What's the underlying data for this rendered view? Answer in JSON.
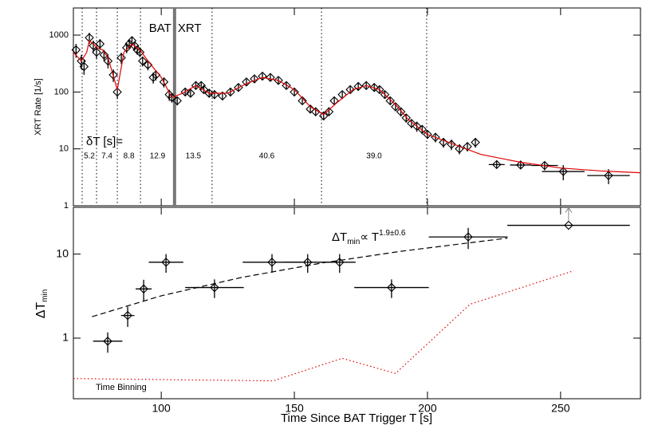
{
  "chart_data": [
    {
      "type": "scatter",
      "y_label": "XRT Rate [1/s]",
      "log_y": true,
      "xlim": [
        67,
        280
      ],
      "xticks": [
        100,
        150,
        200,
        250
      ],
      "ylim": [
        1,
        3000
      ],
      "yticks": [
        1,
        10,
        100,
        1000
      ],
      "series": [
        {
          "style": "points",
          "color": "#000000",
          "x": [
            68,
            70,
            71,
            73,
            74.5,
            75.7,
            77,
            78.5,
            80,
            82,
            83.5,
            85,
            87,
            88,
            89,
            90,
            91,
            92,
            93,
            95,
            97,
            98,
            101,
            103,
            104,
            106,
            109,
            111,
            113,
            115,
            116,
            118,
            120,
            123,
            126,
            129,
            132,
            135,
            138,
            141,
            144,
            147,
            150,
            153,
            156,
            158,
            161,
            163,
            165,
            168,
            171,
            174,
            177,
            180,
            182,
            184,
            186,
            188,
            190,
            192,
            194,
            196,
            198,
            200,
            203,
            206,
            209,
            212,
            215,
            218,
            226,
            235,
            244,
            251,
            268
          ],
          "values": [
            550,
            350,
            280,
            900,
            650,
            500,
            700,
            450,
            350,
            200,
            100,
            400,
            600,
            700,
            800,
            650,
            550,
            500,
            350,
            300,
            180,
            200,
            150,
            90,
            80,
            70,
            100,
            95,
            130,
            130,
            110,
            95,
            90,
            85,
            100,
            120,
            150,
            170,
            190,
            180,
            160,
            130,
            100,
            70,
            50,
            45,
            38,
            45,
            70,
            90,
            110,
            125,
            130,
            120,
            110,
            90,
            70,
            55,
            45,
            35,
            28,
            25,
            22,
            18,
            16,
            13,
            12,
            10,
            11,
            13,
            5.3,
            5.2,
            5.1,
            4.0,
            3.4
          ],
          "yerr": [
            150,
            100,
            80,
            200,
            150,
            120,
            150,
            100,
            90,
            50,
            25,
            90,
            120,
            120,
            130,
            110,
            100,
            90,
            70,
            60,
            40,
            40,
            30,
            20,
            15,
            12,
            15,
            15,
            20,
            20,
            15,
            15,
            15,
            13,
            15,
            18,
            20,
            22,
            25,
            25,
            20,
            18,
            15,
            10,
            8,
            7,
            6,
            7,
            10,
            12,
            15,
            18,
            18,
            18,
            16,
            14,
            11,
            9,
            8,
            6,
            5,
            5,
            4,
            3,
            3,
            2.5,
            2.5,
            2,
            2,
            2.5,
            0.8,
            0.8,
            0.9,
            1.2,
            1.0
          ],
          "xerr": [
            0,
            0,
            0,
            0,
            0,
            0,
            0,
            0,
            0,
            0,
            0,
            0,
            0,
            0,
            0,
            0,
            0,
            0,
            0,
            0,
            0,
            0,
            0,
            0,
            0,
            0,
            0,
            0,
            0,
            0,
            0,
            0,
            0,
            0,
            0,
            0,
            0,
            0,
            0,
            0,
            0,
            0,
            0,
            0,
            0,
            0,
            0,
            0,
            0,
            0,
            0,
            0,
            0,
            0,
            0,
            0,
            0,
            0,
            0,
            0,
            0,
            0,
            0,
            0,
            0,
            0,
            0,
            0,
            0,
            0,
            3,
            4,
            5,
            8,
            8
          ]
        },
        {
          "style": "line",
          "color": "#e00000",
          "x": [
            67,
            70,
            72,
            73,
            76,
            78,
            80,
            83.5,
            86,
            89,
            92,
            95,
            100,
            104,
            108,
            113,
            118,
            125,
            132,
            138,
            144,
            150,
            156,
            161,
            166,
            172,
            177,
            182,
            188,
            193,
            200,
            210,
            220,
            235,
            250,
            265,
            280
          ],
          "values": [
            500,
            350,
            500,
            800,
            600,
            550,
            400,
            110,
            500,
            700,
            550,
            350,
            180,
            80,
            95,
            130,
            95,
            95,
            140,
            180,
            160,
            110,
            55,
            40,
            65,
            110,
            130,
            110,
            60,
            32,
            18,
            12,
            8,
            5.8,
            4.6,
            4.1,
            3.8
          ]
        }
      ],
      "vlines": [
        70.3,
        75.7,
        83.5,
        92.2,
        119.1,
        160.2,
        199.7
      ],
      "bat_xrt_line": 105,
      "bat_label": "BAT",
      "xrt_label": "XRT",
      "dt_title": "δT [s]=",
      "dt_labels": [
        "5.2",
        "7.4",
        "8.8",
        "12.9",
        "13.5",
        "40.6",
        "39.0"
      ]
    },
    {
      "type": "errorbar",
      "x_label": "Time Since BAT Trigger T [s]",
      "y_label": [
        "ΔT",
        "min"
      ],
      "log_y": true,
      "xlim": [
        67,
        280
      ],
      "xticks": [
        100,
        150,
        200,
        250
      ],
      "ylim": [
        0.19,
        36
      ],
      "yticks": [
        1,
        10
      ],
      "series": [
        {
          "style": "points",
          "color": "#000000",
          "limit_color": "#888888",
          "x": [
            79.9,
            87.4,
            93.4,
            101.8,
            120,
            141.6,
            155,
            167,
            186.5,
            215.3,
            253
          ],
          "values": [
            0.92,
            1.86,
            3.85,
            8,
            4,
            8,
            8,
            8,
            4,
            16,
            22
          ],
          "yerr": [
            0.25,
            0.5,
            1.1,
            2,
            1,
            2,
            2,
            2,
            1,
            4.5,
            0
          ],
          "xerr": [
            5.5,
            2.5,
            3,
            6.5,
            11,
            11,
            9,
            6,
            14,
            14.8,
            23
          ],
          "lower_limit": [
            false,
            false,
            false,
            false,
            false,
            false,
            false,
            false,
            false,
            false,
            true
          ]
        },
        {
          "style": "dashed",
          "color": "#000000",
          "x": [
            74,
            100,
            130,
            160,
            190,
            230
          ],
          "values": [
            1.8,
            3.19,
            5.26,
            7.8,
            10.8,
            15.5
          ]
        },
        {
          "style": "dotted",
          "color": "#e00000",
          "x": [
            67,
            142,
            168,
            188,
            216,
            254
          ],
          "values": [
            0.33,
            0.31,
            0.575,
            0.38,
            2.53,
            6.2
          ]
        }
      ],
      "fit_label": [
        "ΔT",
        "min",
        "∝ T",
        "1.9±0.6"
      ],
      "binning_label": "Time Binning",
      "binning_color": "#e00000"
    }
  ]
}
